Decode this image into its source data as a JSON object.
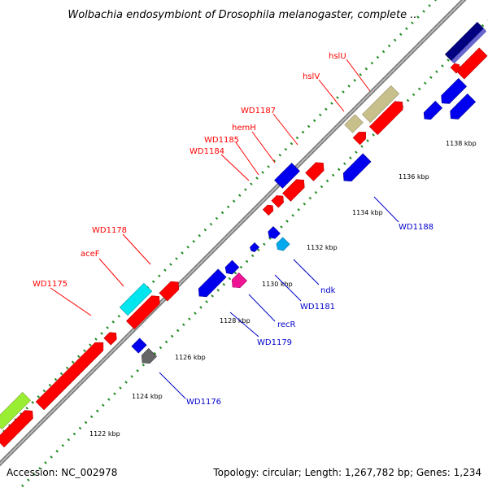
{
  "header": {
    "title": "Wolbachia endosymbiont of Drosophila melanogaster, complete ..."
  },
  "footer": {
    "accession": "Accession: NC_002978",
    "topology": "Topology: circular; Length: 1,267,782 bp; Genes: 1,234"
  },
  "colors": {
    "red": "#ff0000",
    "blue": "#0000ee",
    "cyan": "#00e5ee",
    "sky": "#00a8ee",
    "khaki": "#c8c08a",
    "gray": "#666666",
    "magenta": "#ee1493",
    "lime": "#99ee33",
    "navy": "#000080",
    "backbone": "#999999",
    "ruler": "#228b22",
    "label_red": "#ff0000",
    "label_blue": "#0000cc"
  },
  "ticks": [
    {
      "label": "1122 kbp"
    },
    {
      "label": "1124 kbp"
    },
    {
      "label": "1126 kbp"
    },
    {
      "label": "1128 kbp"
    },
    {
      "label": "1130 kbp"
    },
    {
      "label": "1132 kbp"
    },
    {
      "label": "1134 kbp"
    },
    {
      "label": "1136 kbp"
    },
    {
      "label": "1138 kbp"
    }
  ],
  "labels": [
    {
      "id": "WD1175",
      "text": "WD1175",
      "color": "red"
    },
    {
      "id": "aceF",
      "text": "aceF",
      "color": "red"
    },
    {
      "id": "WD1178",
      "text": "WD1178",
      "color": "red"
    },
    {
      "id": "WD1184",
      "text": "WD1184",
      "color": "red"
    },
    {
      "id": "WD1185",
      "text": "WD1185",
      "color": "red"
    },
    {
      "id": "hemH",
      "text": "hemH",
      "color": "red"
    },
    {
      "id": "WD1187",
      "text": "WD1187",
      "color": "red"
    },
    {
      "id": "hslV",
      "text": "hslV",
      "color": "red"
    },
    {
      "id": "hslU",
      "text": "hslU",
      "color": "red"
    },
    {
      "id": "WD1176",
      "text": "WD1176",
      "color": "blue"
    },
    {
      "id": "WD1179",
      "text": "WD1179",
      "color": "blue"
    },
    {
      "id": "recR",
      "text": "recR",
      "color": "blue"
    },
    {
      "id": "WD1181",
      "text": "WD1181",
      "color": "blue"
    },
    {
      "id": "ndk",
      "text": "ndk",
      "color": "blue"
    },
    {
      "id": "WD1188",
      "text": "WD1188",
      "color": "blue"
    }
  ]
}
